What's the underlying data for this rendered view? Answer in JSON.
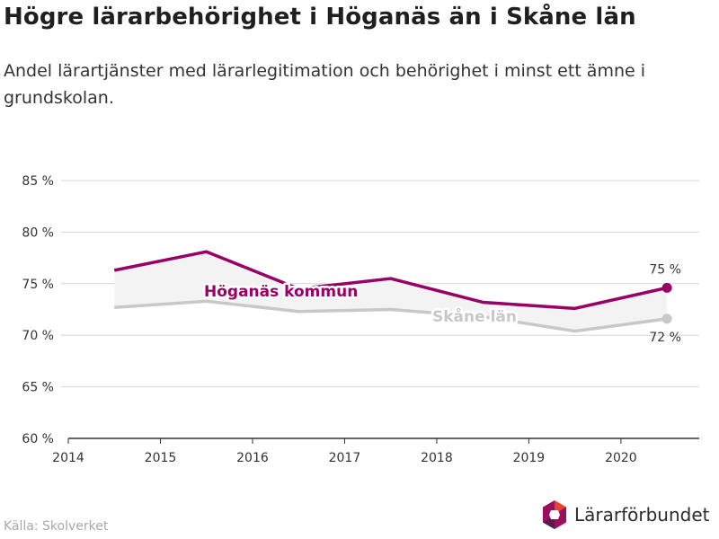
{
  "title": "Högre lärarbehörighet i Höganäs än i Skåne län",
  "subtitle": "Andel lärartjänster med lärarlegitimation och behörighet i minst ett ämne i grundskolan.",
  "source": "Källa: Skolverket",
  "brand": {
    "name": "Lärarförbundet",
    "colors": [
      "#9b0e5f",
      "#e8432e",
      "#5a1a4a"
    ]
  },
  "colors": {
    "hoganas": "#990066",
    "skane": "#c8c8c8",
    "band": "#f3f3f3",
    "grid": "#d6d6d6",
    "axis": "#333333"
  },
  "chart_data": {
    "type": "line",
    "x_ticks": [
      "2014",
      "2015",
      "2016",
      "2017",
      "2018",
      "2019",
      "2020"
    ],
    "y_ticks": [
      "60 %",
      "65 %",
      "70 %",
      "75 %",
      "80 %",
      "85 %"
    ],
    "ylim": [
      60,
      85
    ],
    "xlim": [
      2014,
      2020.85
    ],
    "grid": true,
    "series": [
      {
        "name": "Höganäs kommun",
        "x": [
          2014.5,
          2015.5,
          2016.5,
          2017.5,
          2018.5,
          2019.5,
          2020.5
        ],
        "values": [
          76.3,
          78.1,
          74.5,
          75.5,
          73.2,
          72.6,
          74.6
        ],
        "end_label": "75 %"
      },
      {
        "name": "Skåne län",
        "x": [
          2014.5,
          2015.5,
          2016.5,
          2017.5,
          2018.5,
          2019.5,
          2020.5
        ],
        "values": [
          72.7,
          73.3,
          72.3,
          72.5,
          71.8,
          70.4,
          71.6
        ],
        "end_label": "72 %"
      }
    ]
  }
}
